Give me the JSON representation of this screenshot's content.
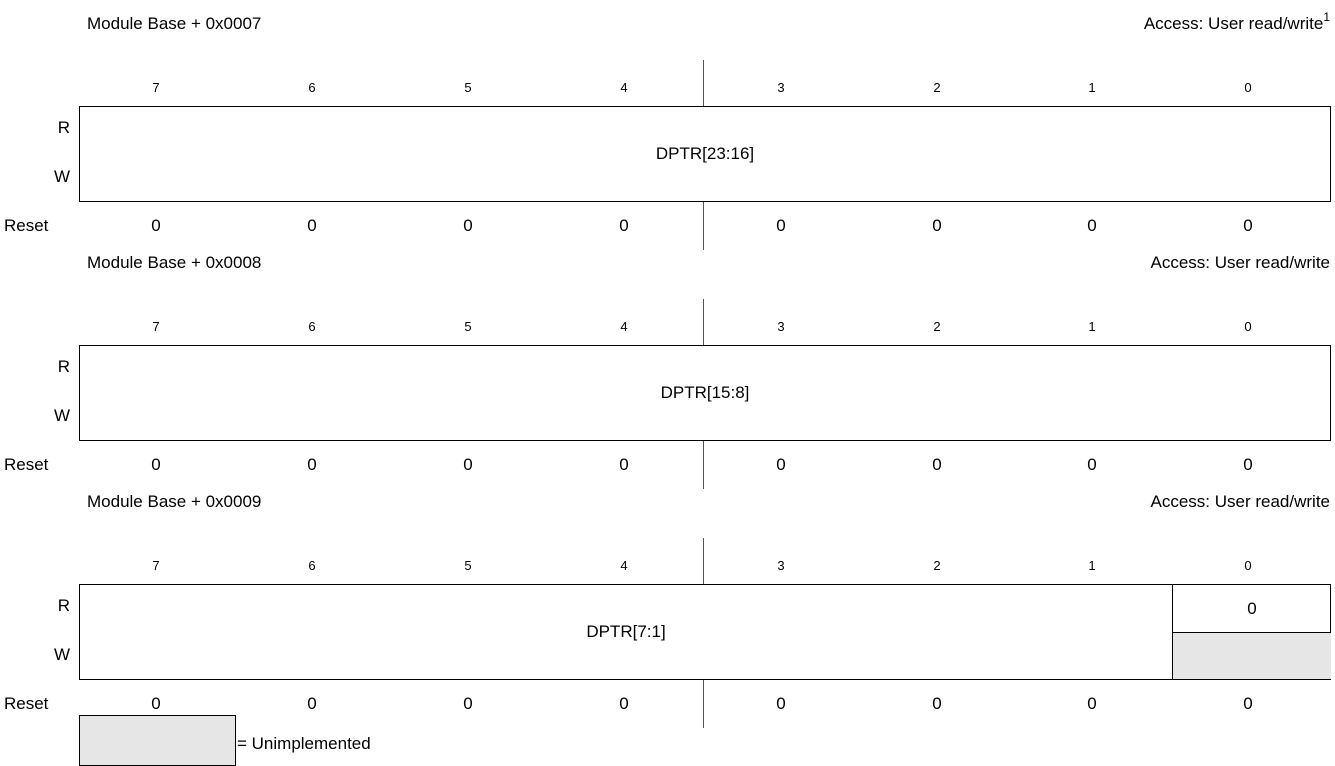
{
  "registers": [
    {
      "address": "Module Base + 0x0007",
      "access": "Access: User read/write",
      "access_note": "1",
      "bit_numbers": [
        "7",
        "6",
        "5",
        "4",
        "3",
        "2",
        "1",
        "0"
      ],
      "row_labels": {
        "read": "R",
        "write": "W",
        "reset": "Reset"
      },
      "field": "DPTR[23:16]",
      "reset_values": [
        "0",
        "0",
        "0",
        "0",
        "0",
        "0",
        "0",
        "0"
      ]
    },
    {
      "address": "Module Base + 0x0008",
      "access": "Access: User read/write",
      "bit_numbers": [
        "7",
        "6",
        "5",
        "4",
        "3",
        "2",
        "1",
        "0"
      ],
      "row_labels": {
        "read": "R",
        "write": "W",
        "reset": "Reset"
      },
      "field": "DPTR[15:8]",
      "reset_values": [
        "0",
        "0",
        "0",
        "0",
        "0",
        "0",
        "0",
        "0"
      ]
    },
    {
      "address": "Module Base + 0x0009",
      "access": "Access: User read/write",
      "bit_numbers": [
        "7",
        "6",
        "5",
        "4",
        "3",
        "2",
        "1",
        "0"
      ],
      "row_labels": {
        "read": "R",
        "write": "W",
        "reset": "Reset"
      },
      "field": "DPTR[7:1]",
      "bit0_read_value": "0",
      "reset_values": [
        "0",
        "0",
        "0",
        "0",
        "0",
        "0",
        "0",
        "0"
      ]
    }
  ],
  "legend": {
    "text": "= Unimplemented",
    "swatch_color": "#e6e6e6"
  }
}
